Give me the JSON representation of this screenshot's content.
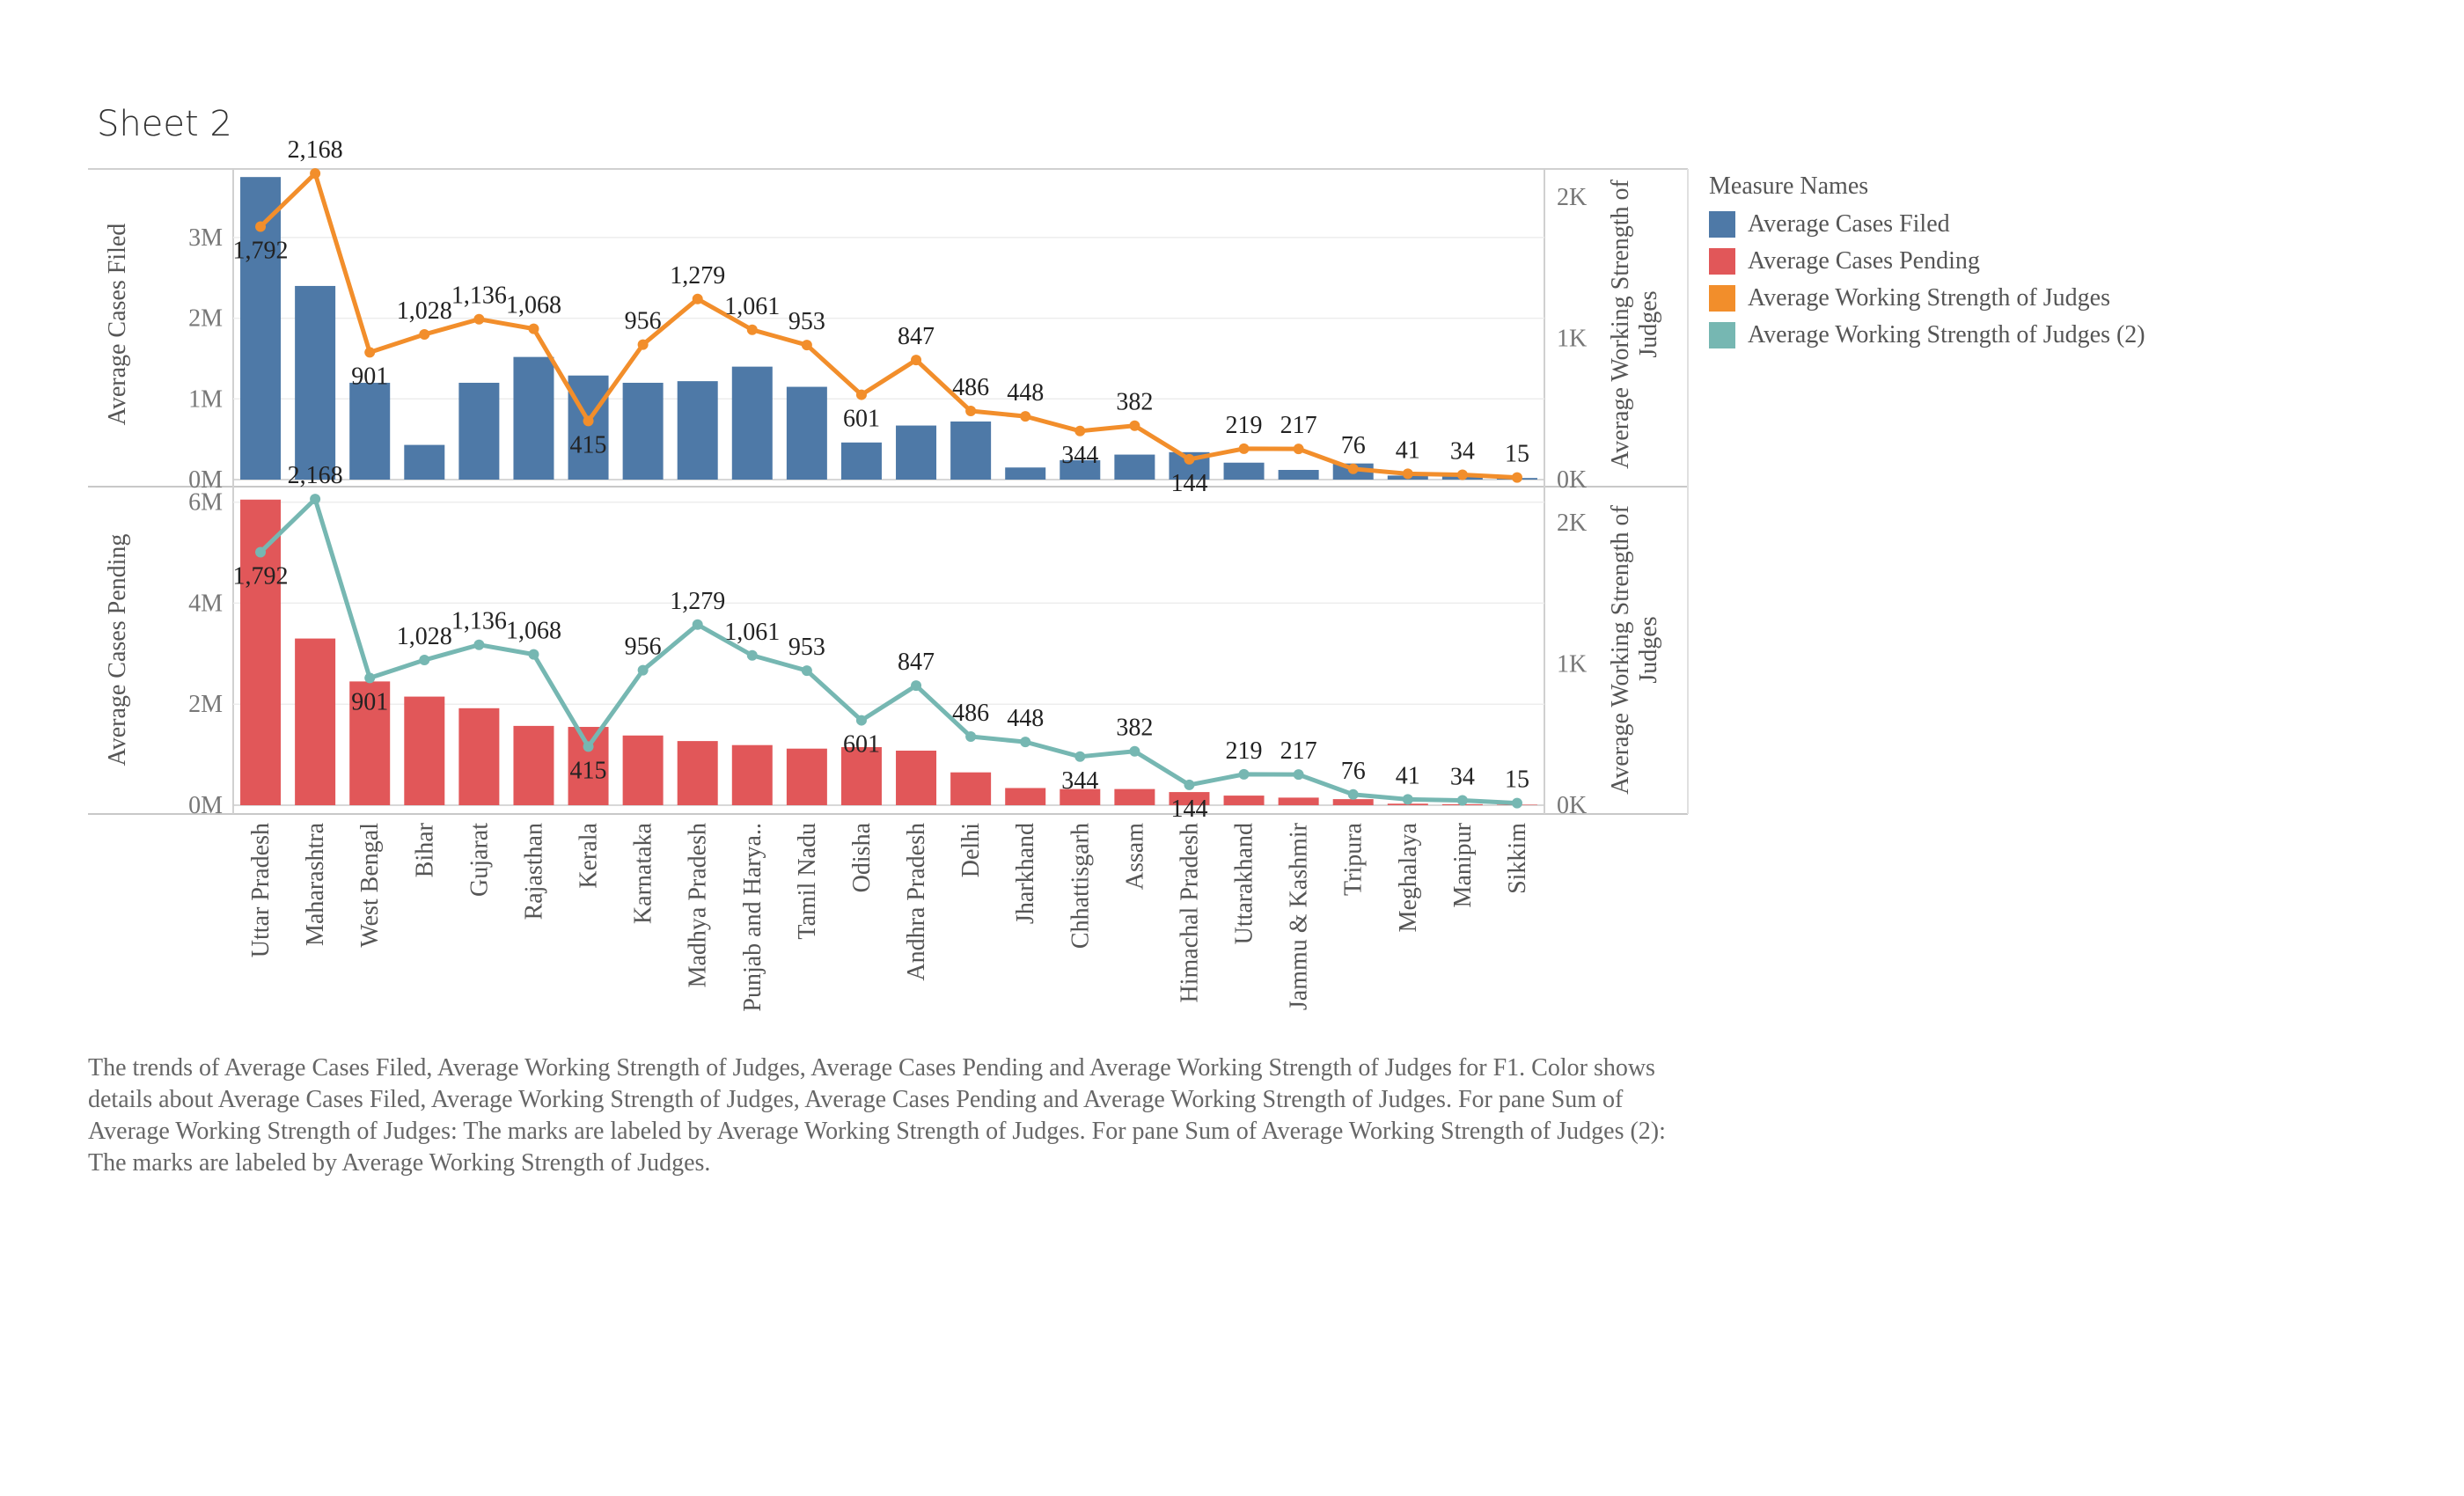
{
  "title": "Sheet 2",
  "legend": {
    "title": "Measure Names",
    "items": [
      {
        "label": "Average Cases Filed",
        "color": "#4e79a7"
      },
      {
        "label": "Average Cases Pending",
        "color": "#e15759"
      },
      {
        "label": "Average Working Strength of Judges",
        "color": "#f28e2b"
      },
      {
        "label": "Average Working Strength of Judges (2)",
        "color": "#76b7b2"
      }
    ]
  },
  "caption": "The trends of Average Cases Filed, Average Working Strength of Judges, Average Cases Pending and Average Working Strength of Judges for F1. Color shows details about Average Cases Filed, Average Working Strength of Judges, Average Cases Pending and Average Working Strength of Judges.  For pane Sum of Average Working Strength of Judges:  The marks are labeled by Average Working Strength of Judges.  For pane Sum of Average Working Strength of Judges (2):  The marks are labeled by Average Working Strength of Judges.",
  "chart_data": {
    "type": "bar",
    "categories": [
      "Uttar Pradesh",
      "Maharashtra",
      "West Bengal",
      "Bihar",
      "Gujarat",
      "Rajasthan",
      "Kerala",
      "Karnataka",
      "Madhya Pradesh",
      "Punjab and Harya..",
      "Tamil Nadu",
      "Odisha",
      "Andhra Pradesh",
      "Delhi",
      "Jharkhand",
      "Chhattisgarh",
      "Assam",
      "Himachal Pradesh",
      "Uttarakhand",
      "Jammu & Kashmir",
      "Tripura",
      "Meghalaya",
      "Manipur",
      "Sikkim"
    ],
    "panes": [
      {
        "ylabel": "Average Cases Filed",
        "ylabel_right": "Average Working Strength of Judges",
        "y_ticks": [
          "0M",
          "1M",
          "2M",
          "3M"
        ],
        "ylim": [
          0,
          3850000
        ],
        "y2_ticks": [
          "0K",
          "1K",
          "2K"
        ],
        "y2lim": [
          0,
          2200
        ],
        "bar_series": {
          "name": "Average Cases Filed",
          "color": "#4e79a7",
          "values": [
            3750000,
            2400000,
            1200000,
            430000,
            1200000,
            1520000,
            1290000,
            1200000,
            1220000,
            1400000,
            1150000,
            460000,
            670000,
            720000,
            150000,
            240000,
            310000,
            340000,
            210000,
            120000,
            200000,
            50000,
            40000,
            20000
          ]
        },
        "line_series": {
          "name": "Average Working Strength of Judges",
          "color": "#f28e2b",
          "values": [
            1792,
            2168,
            901,
            1028,
            1136,
            1068,
            415,
            956,
            1279,
            1061,
            953,
            601,
            847,
            486,
            448,
            344,
            382,
            144,
            219,
            217,
            76,
            41,
            34,
            15
          ],
          "labels": [
            "1,792",
            "2,168",
            "901",
            "1,028",
            "1,136",
            "1,068",
            "415",
            "956",
            "1,279",
            "1,061",
            "953",
            "601",
            "847",
            "486",
            "448",
            "344",
            "382",
            "144",
            "219",
            "217",
            "76",
            "41",
            "34",
            "15"
          ]
        }
      },
      {
        "ylabel": "Average Cases Pending",
        "ylabel_right": "Average Working Strength of Judges",
        "y_ticks": [
          "0M",
          "2M",
          "4M",
          "6M"
        ],
        "ylim": [
          0,
          6150000
        ],
        "y2_ticks": [
          "0K",
          "1K",
          "2K"
        ],
        "y2lim": [
          0,
          2200
        ],
        "bar_series": {
          "name": "Average Cases Pending",
          "color": "#e15759",
          "values": [
            6050000,
            3300000,
            2450000,
            2150000,
            1920000,
            1570000,
            1550000,
            1380000,
            1270000,
            1190000,
            1120000,
            1150000,
            1080000,
            650000,
            340000,
            320000,
            320000,
            260000,
            190000,
            150000,
            120000,
            30000,
            20000,
            10000
          ]
        },
        "line_series": {
          "name": "Average Working Strength of Judges (2)",
          "color": "#76b7b2",
          "values": [
            1792,
            2168,
            901,
            1028,
            1136,
            1068,
            415,
            956,
            1279,
            1061,
            953,
            601,
            847,
            486,
            448,
            344,
            382,
            144,
            219,
            217,
            76,
            41,
            34,
            15
          ],
          "labels": [
            "1,792",
            "2,168",
            "901",
            "1,028",
            "1,136",
            "1,068",
            "415",
            "956",
            "1,279",
            "1,061",
            "953",
            "601",
            "847",
            "486",
            "448",
            "344",
            "382",
            "144",
            "219",
            "217",
            "76",
            "41",
            "34",
            "15"
          ]
        }
      }
    ]
  }
}
